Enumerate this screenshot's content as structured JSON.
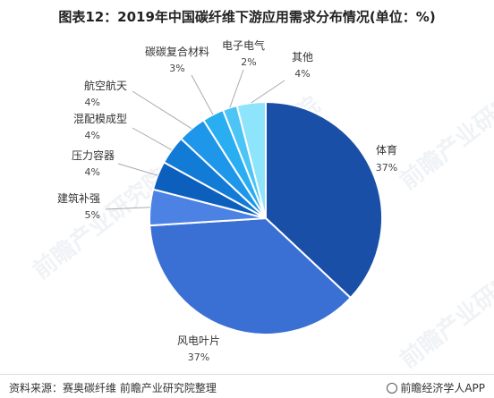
{
  "title": "图表12：2019年中国碳纤维下游应用需求分布情况(单位：%)",
  "watermark": "前瞻产业研究院",
  "chart_data": {
    "type": "pie",
    "slices": [
      {
        "label": "体育",
        "value": 37,
        "value_label": "37%",
        "color": "#1a4fa8"
      },
      {
        "label": "风电叶片",
        "value": 37,
        "value_label": "37%",
        "color": "#3a70d4"
      },
      {
        "label": "建筑补强",
        "value": 5,
        "value_label": "5%",
        "color": "#4c82e3"
      },
      {
        "label": "压力容器",
        "value": 4,
        "value_label": "4%",
        "color": "#0d5fbd"
      },
      {
        "label": "混配模成型",
        "value": 4,
        "value_label": "4%",
        "color": "#127bd6"
      },
      {
        "label": "航空航天",
        "value": 4,
        "value_label": "4%",
        "color": "#1e96ea"
      },
      {
        "label": "碳碳复合材料",
        "value": 3,
        "value_label": "3%",
        "color": "#2aaef2"
      },
      {
        "label": "电子电气",
        "value": 2,
        "value_label": "2%",
        "color": "#4cc4f6"
      },
      {
        "label": "其他",
        "value": 4,
        "value_label": "4%",
        "color": "#8ee4fb"
      }
    ]
  },
  "footer": {
    "source": "资料来源：赛奥碳纤维 前瞻产业研究院整理",
    "brand": "前瞻经济学人APP"
  }
}
